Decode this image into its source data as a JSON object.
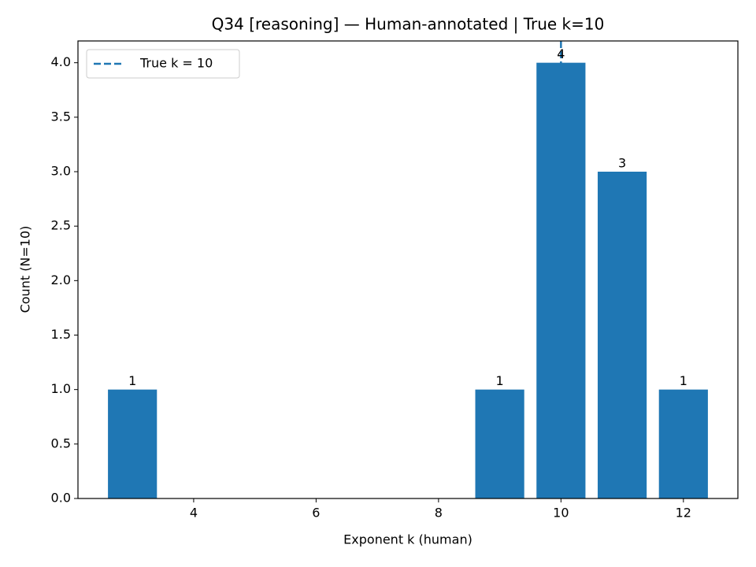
{
  "chart_data": {
    "type": "bar",
    "title": "Q34 [reasoning] — Human-annotated | True k=10",
    "x_label": "Exponent k (human)",
    "y_label": "Count (N=10)",
    "x": [
      3,
      9,
      10,
      11,
      12
    ],
    "values": [
      1,
      1,
      4,
      3,
      1
    ],
    "color": "#1f77b4",
    "xlim": [
      2.11,
      12.89
    ],
    "xticks": [
      4,
      6,
      8,
      10,
      12
    ],
    "ylim": [
      0,
      4.2
    ],
    "yticks": [
      {
        "value": 0,
        "label": "0.0"
      },
      0.5,
      {
        "value": 1,
        "label": "1.0"
      },
      1.5,
      {
        "value": 2,
        "label": "2.0"
      },
      2.5,
      {
        "value": 3,
        "label": "3.0"
      },
      3.5,
      {
        "value": 4,
        "label": "4.0"
      }
    ],
    "vline": {
      "x": 10,
      "label": "True k = 10",
      "color": "#1f77b4",
      "style": "dashed"
    },
    "legend": "upper left",
    "grid": false
  }
}
